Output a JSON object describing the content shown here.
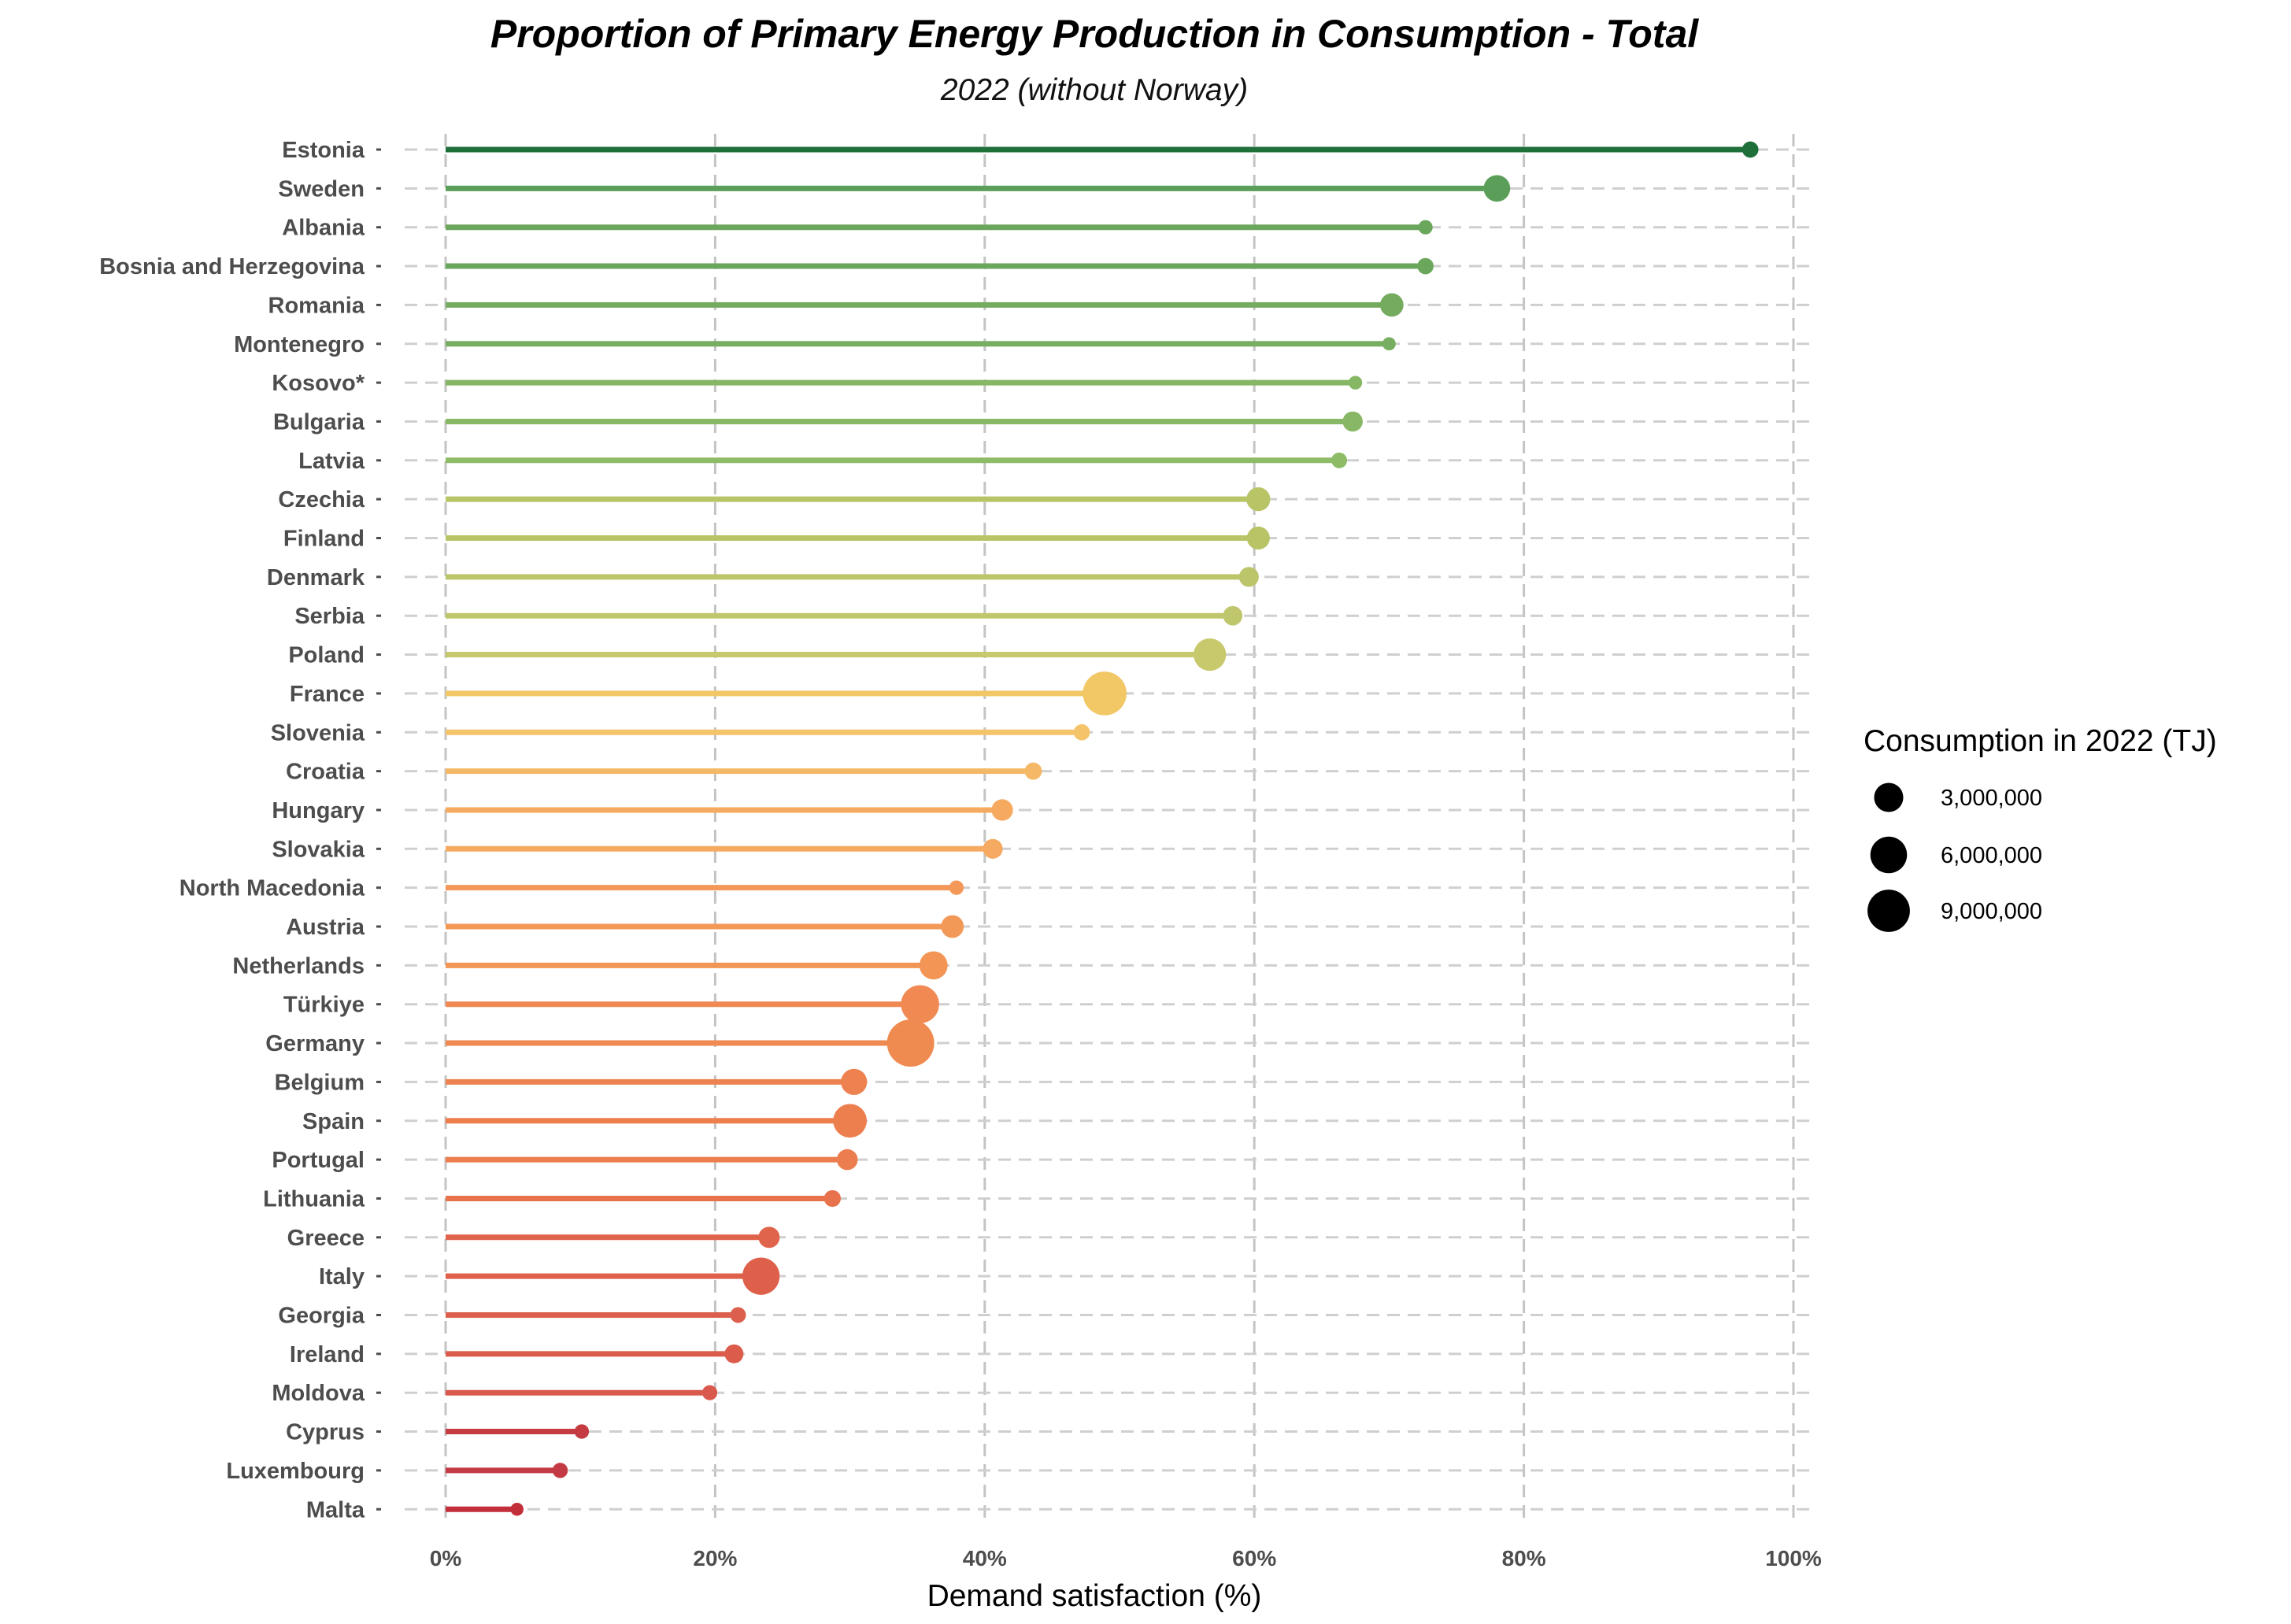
{
  "chart_data": {
    "type": "lollipop",
    "title": "Proportion of Primary Energy Production in Consumption - Total",
    "subtitle": "2022 (without Norway)",
    "xlabel": "Demand satisfaction (%)",
    "xlim": [
      0,
      100
    ],
    "x_ticks": [
      0,
      20,
      40,
      60,
      80,
      100
    ],
    "x_tick_labels": [
      "0%",
      "20%",
      "40%",
      "60%",
      "80%",
      "100%"
    ],
    "grid": "dashed vertical and horizontal",
    "legend": {
      "title": "Consumption in 2022 (TJ)",
      "position": "right",
      "entries": [
        {
          "label": "3,000,000",
          "value": 3000000
        },
        {
          "label": "6,000,000",
          "value": 6000000
        },
        {
          "label": "9,000,000",
          "value": 9000000
        }
      ]
    },
    "categories": [
      "Estonia",
      "Sweden",
      "Albania",
      "Bosnia and Herzegovina",
      "Romania",
      "Montenegro",
      "Kosovo*",
      "Bulgaria",
      "Latvia",
      "Czechia",
      "Finland",
      "Denmark",
      "Serbia",
      "Poland",
      "France",
      "Slovenia",
      "Croatia",
      "Hungary",
      "Slovakia",
      "North Macedonia",
      "Austria",
      "Netherlands",
      "Türkiye",
      "Germany",
      "Belgium",
      "Spain",
      "Portugal",
      "Lithuania",
      "Greece",
      "Italy",
      "Georgia",
      "Ireland",
      "Moldova",
      "Cyprus",
      "Luxembourg",
      "Malta"
    ],
    "values": [
      96.8,
      78.0,
      72.7,
      72.7,
      70.2,
      70.0,
      67.5,
      67.3,
      66.3,
      60.3,
      60.3,
      59.6,
      58.4,
      56.7,
      48.9,
      47.2,
      43.6,
      41.3,
      40.6,
      37.9,
      37.6,
      36.2,
      35.2,
      34.5,
      30.3,
      30.0,
      29.8,
      28.7,
      24.0,
      23.4,
      21.7,
      21.4,
      19.6,
      10.1,
      8.5,
      5.3
    ],
    "consumption_tj": [
      250000,
      2200000,
      100000,
      250000,
      1400000,
      45000,
      60000,
      750000,
      200000,
      1500000,
      1300000,
      700000,
      650000,
      4200000,
      9800000,
      250000,
      350000,
      1000000,
      700000,
      110000,
      1250000,
      2700000,
      6700000,
      12000000,
      2100000,
      4700000,
      900000,
      300000,
      950000,
      6300000,
      200000,
      560000,
      150000,
      110000,
      165000,
      35000
    ],
    "colors": [
      "#1e6f3a",
      "#5a9e5a",
      "#6aa65c",
      "#6aa65c",
      "#74ab5e",
      "#78ae61",
      "#86b764",
      "#88b865",
      "#8dbb66",
      "#b9c467",
      "#b9c467",
      "#bdc56a",
      "#c0c66c",
      "#c8c86c",
      "#f2c766",
      "#f3c46a",
      "#f5b866",
      "#f6aa60",
      "#f6a960",
      "#f4985a",
      "#f29958",
      "#f29555",
      "#f18a52",
      "#ef8a50",
      "#ed8250",
      "#ed7f4e",
      "#ec7d4e",
      "#e7724c",
      "#e0644c",
      "#df604a",
      "#dc5e4c",
      "#db5c4b",
      "#d95a4c",
      "#c43c42",
      "#c43a44",
      "#c22e3a"
    ]
  }
}
